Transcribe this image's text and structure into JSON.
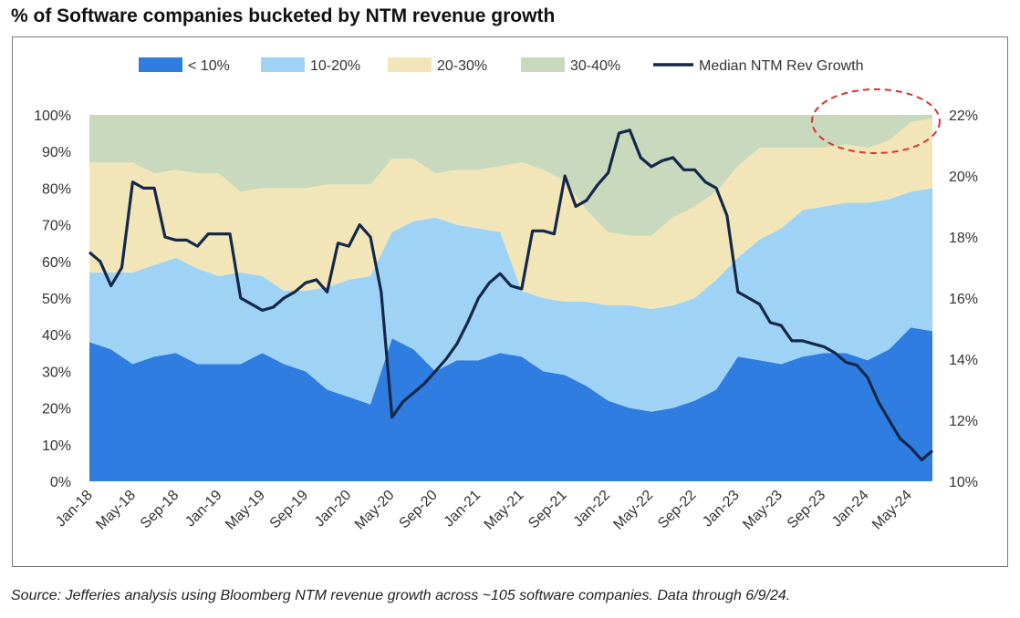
{
  "title": "% of Software companies bucketed by NTM revenue growth",
  "source": "Source: Jefferies analysis using Bloomberg NTM revenue growth across ~105 software companies. Data through 6/9/24.",
  "colors": {
    "lt10": "#2f7de1",
    "b10_20": "#9fd3f6",
    "b20_30": "#f2e6b8",
    "b30_40": "#c8d9bd",
    "median": "#14284a",
    "highlight": "#e03030"
  },
  "chart_data": {
    "type": "area",
    "x": [
      "Jan-18",
      "Mar-18",
      "May-18",
      "Jul-18",
      "Sep-18",
      "Nov-18",
      "Jan-19",
      "Mar-19",
      "May-19",
      "Jul-19",
      "Sep-19",
      "Nov-19",
      "Jan-20",
      "Mar-20",
      "May-20",
      "Jul-20",
      "Sep-20",
      "Nov-20",
      "Jan-21",
      "Mar-21",
      "May-21",
      "Jul-21",
      "Sep-21",
      "Nov-21",
      "Jan-22",
      "Mar-22",
      "May-22",
      "Jul-22",
      "Sep-22",
      "Nov-22",
      "Jan-23",
      "Mar-23",
      "May-23",
      "Jul-23",
      "Sep-23",
      "Nov-23",
      "Jan-24",
      "Mar-24",
      "May-24",
      "Jun-24"
    ],
    "x_tick_labels": [
      "Jan-18",
      "May-18",
      "Sep-18",
      "Jan-19",
      "May-19",
      "Sep-19",
      "Jan-20",
      "May-20",
      "Sep-20",
      "Jan-21",
      "May-21",
      "Sep-21",
      "Jan-22",
      "May-22",
      "Sep-22",
      "Jan-23",
      "May-23",
      "Sep-23",
      "Jan-24",
      "May-24"
    ],
    "series": [
      {
        "name": "< 10%",
        "values": [
          38,
          36,
          32,
          34,
          35,
          32,
          32,
          32,
          35,
          32,
          30,
          25,
          23,
          21,
          39,
          36,
          30,
          33,
          33,
          35,
          34,
          30,
          29,
          26,
          22,
          20,
          19,
          20,
          22,
          25,
          34,
          33,
          32,
          34,
          35,
          35,
          33,
          36,
          42,
          41
        ]
      },
      {
        "name": "10-20%",
        "values": [
          19,
          21,
          25,
          25,
          26,
          26,
          24,
          25,
          21,
          20,
          22,
          28,
          32,
          35,
          29,
          35,
          42,
          37,
          36,
          33,
          18,
          20,
          20,
          23,
          26,
          28,
          28,
          28,
          28,
          30,
          27,
          33,
          37,
          40,
          40,
          41,
          43,
          41,
          37,
          39
        ]
      },
      {
        "name": "20-30%",
        "values": [
          30,
          30,
          30,
          25,
          24,
          26,
          28,
          22,
          24,
          28,
          28,
          28,
          26,
          25,
          20,
          17,
          12,
          15,
          16,
          18,
          35,
          35,
          33,
          25,
          20,
          19,
          20,
          24,
          25,
          24,
          25,
          25,
          22,
          17,
          16,
          16,
          15,
          16,
          19,
          19
        ]
      },
      {
        "name": "30-40%",
        "values": [
          13,
          13,
          13,
          16,
          15,
          16,
          16,
          21,
          20,
          20,
          20,
          19,
          19,
          19,
          12,
          12,
          16,
          15,
          15,
          14,
          13,
          15,
          18,
          26,
          32,
          33,
          33,
          28,
          25,
          21,
          14,
          9,
          9,
          9,
          9,
          8,
          9,
          7,
          2,
          1
        ]
      }
    ],
    "line_series": {
      "name": "Median NTM Rev Growth",
      "x": [
        "Jan-18",
        "Feb-18",
        "Mar-18",
        "Mar-18b",
        "Apr-18",
        "May-18",
        "Jun-18",
        "Jul-18",
        "Aug-18",
        "Sep-18",
        "Oct-18",
        "Nov-18",
        "Dec-18",
        "Jan-19",
        "Feb-19",
        "Mar-19",
        "Apr-19",
        "May-19",
        "Jun-19",
        "Jul-19",
        "Aug-19",
        "Sep-19",
        "Oct-19",
        "Nov-19",
        "Dec-19",
        "Jan-20",
        "Feb-20",
        "Mar-20",
        "Apr-20",
        "May-20",
        "Jun-20",
        "Jul-20",
        "Aug-20",
        "Sep-20",
        "Oct-20",
        "Nov-20",
        "Dec-20",
        "Jan-21",
        "Feb-21",
        "Mar-21",
        "Apr-21",
        "May-21",
        "Jun-21",
        "Jul-21",
        "Aug-21",
        "Sep-21",
        "Oct-21",
        "Nov-21",
        "Dec-21",
        "Jan-22",
        "Feb-22",
        "Mar-22",
        "Apr-22",
        "May-22",
        "Jun-22",
        "Jul-22",
        "Aug-22",
        "Sep-22",
        "Oct-22",
        "Nov-22",
        "Dec-22",
        "Jan-23",
        "Feb-23",
        "Mar-23",
        "Apr-23",
        "May-23",
        "Jun-23",
        "Jul-23",
        "Aug-23",
        "Sep-23",
        "Oct-23",
        "Nov-23",
        "Dec-23",
        "Jan-24",
        "Feb-24",
        "Mar-24",
        "Apr-24",
        "May-24",
        "Jun-24"
      ],
      "values": [
        17.5,
        17.2,
        16.4,
        17.0,
        19.8,
        19.6,
        19.6,
        18.0,
        17.9,
        17.9,
        17.7,
        18.1,
        18.1,
        18.1,
        16.0,
        15.8,
        15.6,
        15.7,
        16.0,
        16.2,
        16.5,
        16.6,
        16.2,
        17.8,
        17.7,
        18.4,
        18.0,
        16.2,
        12.1,
        12.6,
        12.9,
        13.2,
        13.6,
        14.0,
        14.5,
        15.2,
        16.0,
        16.5,
        16.8,
        16.4,
        16.3,
        18.2,
        18.2,
        18.1,
        20.0,
        19.0,
        19.2,
        19.7,
        20.1,
        21.4,
        21.5,
        20.6,
        20.3,
        20.5,
        20.6,
        20.2,
        20.2,
        19.8,
        19.6,
        18.7,
        16.2,
        16.0,
        15.8,
        15.2,
        15.1,
        14.6,
        14.6,
        14.5,
        14.4,
        14.2,
        13.9,
        13.8,
        13.4,
        12.6,
        12.0,
        11.4,
        11.1,
        10.7,
        11.0
      ]
    },
    "xlabel": "",
    "ylabel": "",
    "ylim": [
      0,
      100
    ],
    "y_tick_labels": [
      "0%",
      "10%",
      "20%",
      "30%",
      "40%",
      "50%",
      "60%",
      "70%",
      "80%",
      "90%",
      "100%"
    ],
    "y2lim": [
      10,
      22
    ],
    "y2_tick_labels": [
      "10%",
      "12%",
      "14%",
      "16%",
      "18%",
      "20%",
      "22%"
    ],
    "legend": {
      "placement": "top-center",
      "items": [
        "< 10%",
        "10-20%",
        "20-30%",
        "30-40%",
        "Median NTM Rev Growth"
      ]
    },
    "grid": false,
    "annotation": {
      "shape": "dashed-ellipse",
      "near": "top-right"
    }
  }
}
